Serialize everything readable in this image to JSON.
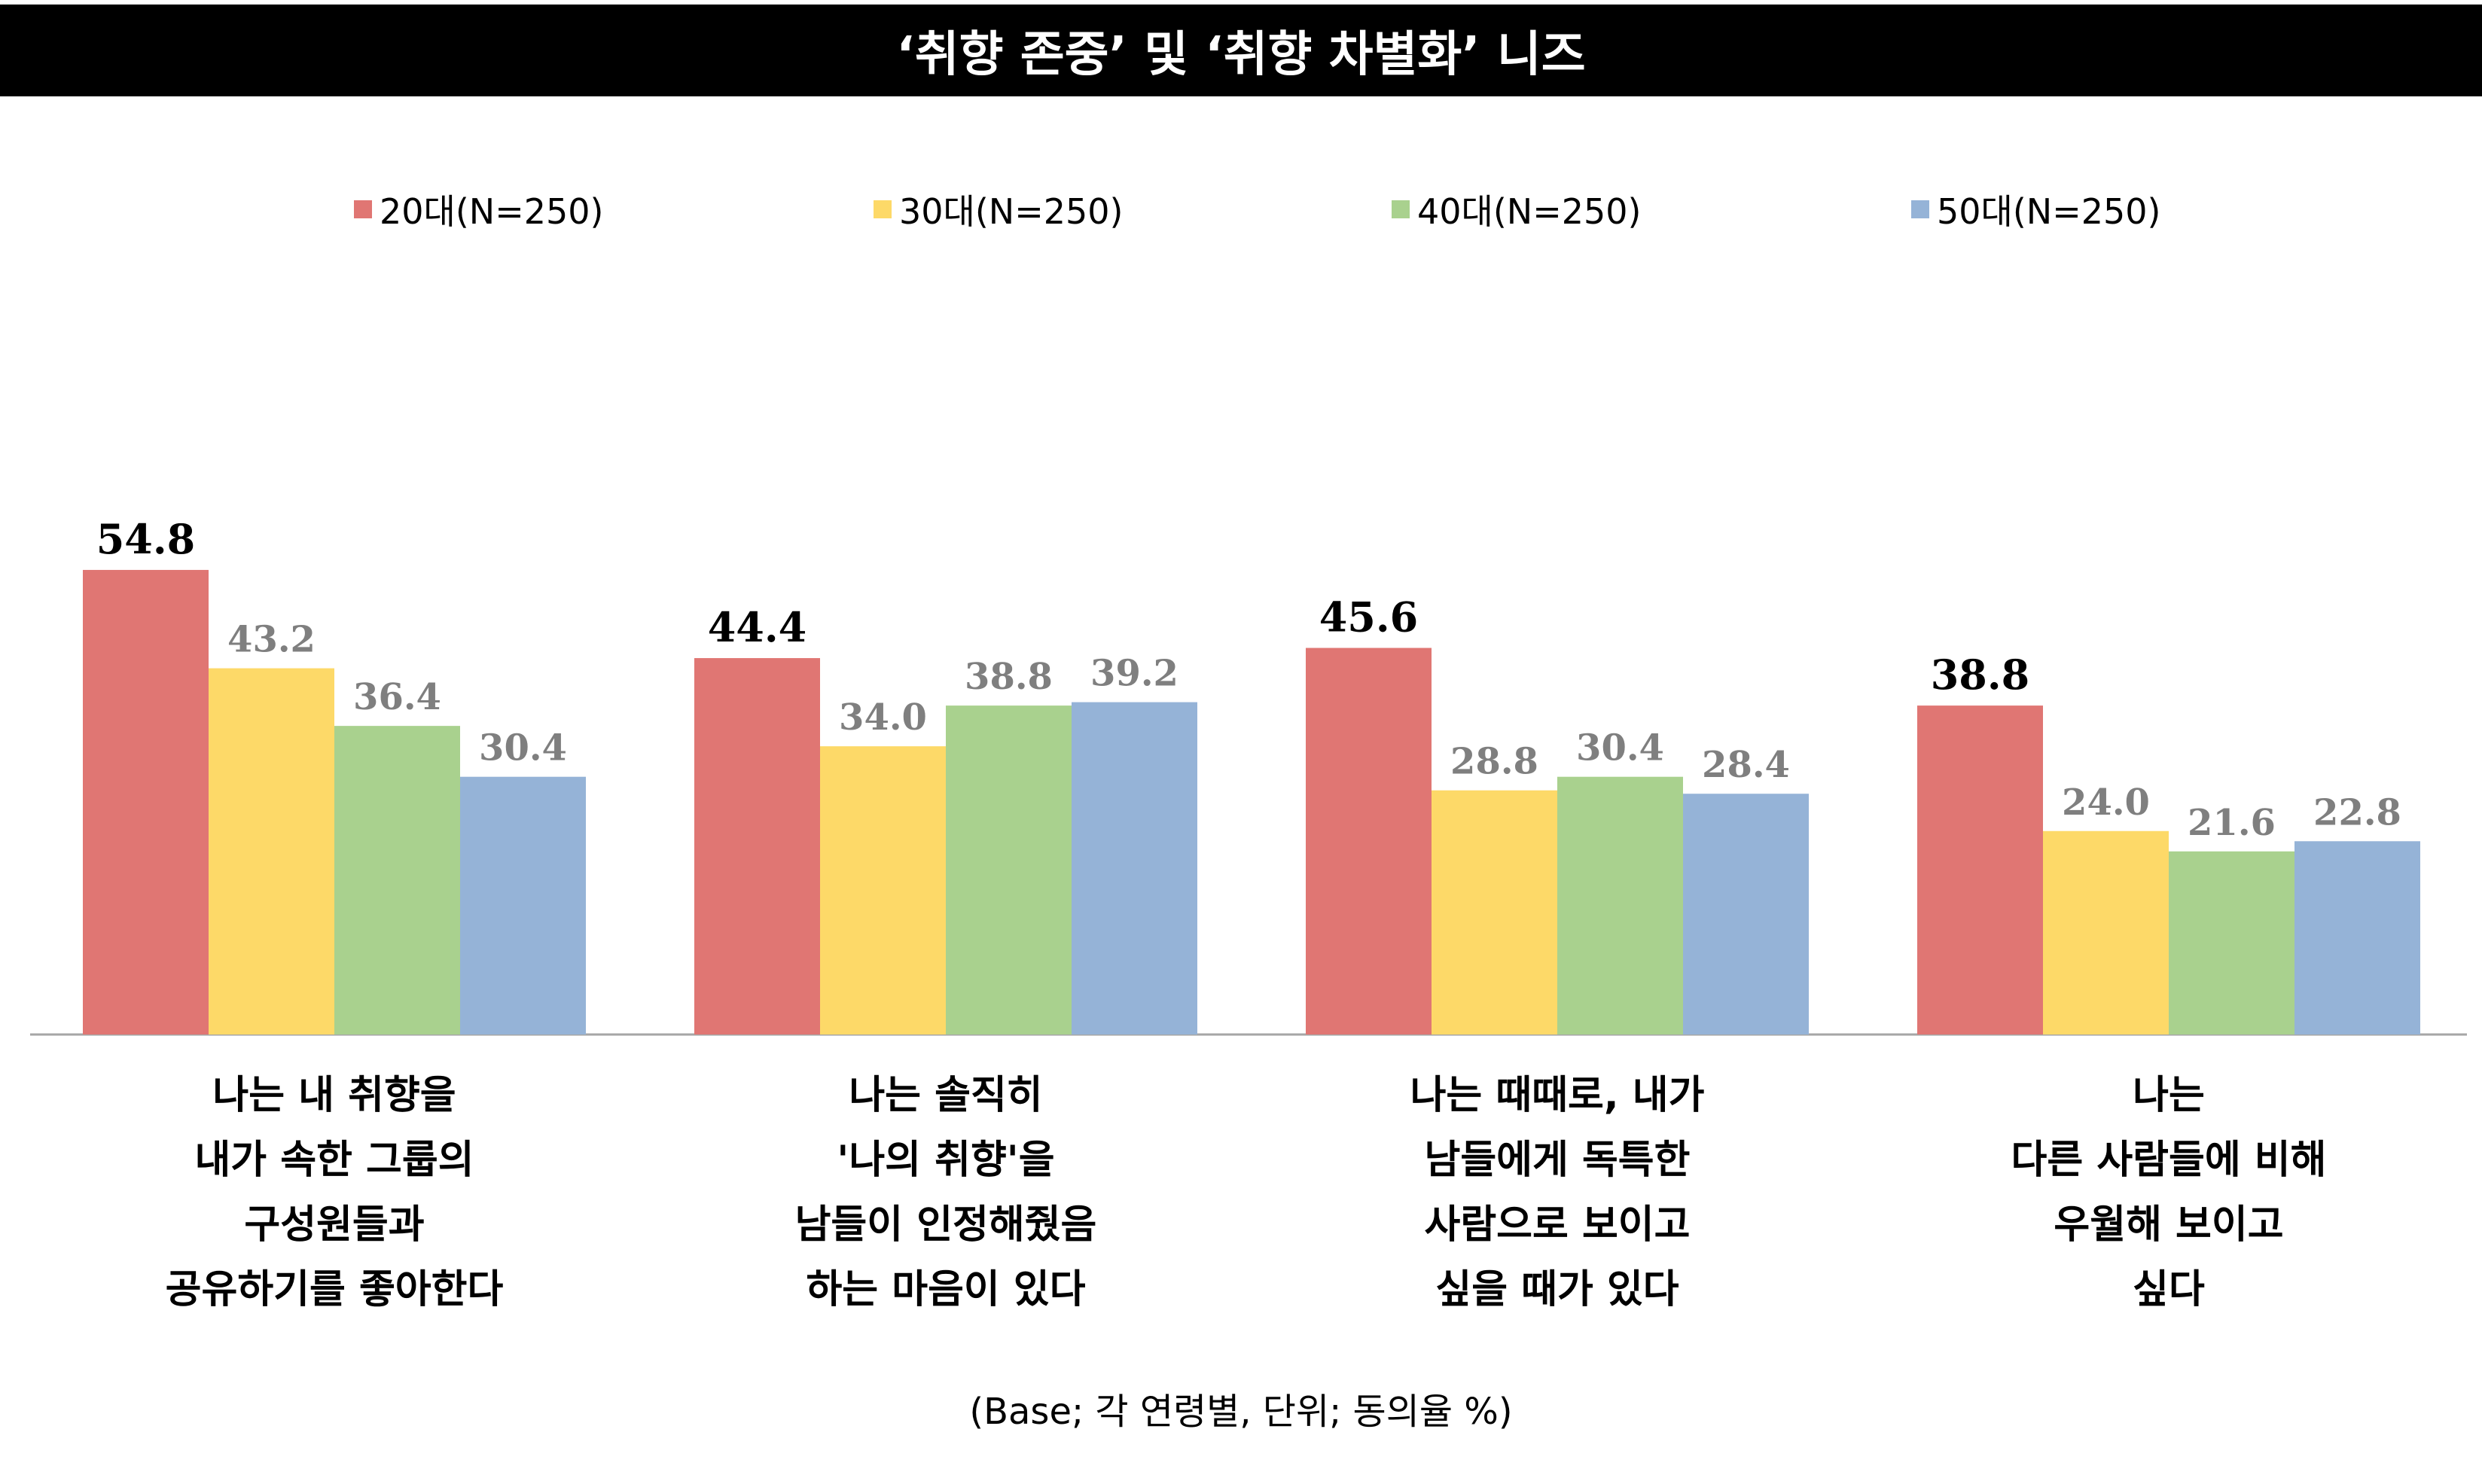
{
  "chart_data": {
    "type": "bar",
    "title": "‘취향 존중’ 및 ‘취향 차별화’ 니즈",
    "categories": [
      [
        "나는 내 취향을",
        "내가 속한 그룹의",
        "구성원들과",
        "공유하기를 좋아한다"
      ],
      [
        "나는 솔직히",
        "'나의 취향'을",
        "남들이 인정해줬음",
        "하는 마음이 있다"
      ],
      [
        "나는 때때로, 내가",
        "남들에게 독특한",
        "사람으로 보이고",
        "싶을 때가 있다"
      ],
      [
        "나는",
        "다른 사람들에 비해",
        "우월해 보이고",
        "싶다"
      ]
    ],
    "series": [
      {
        "name": "20대(N=250)",
        "color": "#E07673",
        "values": [
          54.8,
          44.4,
          45.6,
          38.8
        ],
        "label_color": "#000000"
      },
      {
        "name": "30대(N=250)",
        "color": "#FDD968",
        "values": [
          43.2,
          34.0,
          28.8,
          24.0
        ],
        "label_color": "#7F7F7F"
      },
      {
        "name": "40대(N=250)",
        "color": "#A9D18E",
        "values": [
          36.4,
          38.8,
          30.4,
          21.6
        ],
        "label_color": "#7F7F7F"
      },
      {
        "name": "50대(N=250)",
        "color": "#95B3D7",
        "values": [
          30.4,
          39.2,
          28.4,
          22.8
        ],
        "label_color": "#7F7F7F"
      }
    ],
    "value_labels": [
      [
        "54.8",
        "43.2",
        "36.4",
        "30.4"
      ],
      [
        "44.4",
        "34.0",
        "38.8",
        "39.2"
      ],
      [
        "45.6",
        "28.8",
        "30.4",
        "28.4"
      ],
      [
        "38.8",
        "24.0",
        "21.6",
        "22.8"
      ]
    ],
    "ylim": [
      0,
      60
    ],
    "legend_position": "top",
    "grid": false,
    "xlabel": "",
    "ylabel": ""
  },
  "footnote": "(Base; 각 연령별, 단위; 동의율 %)"
}
